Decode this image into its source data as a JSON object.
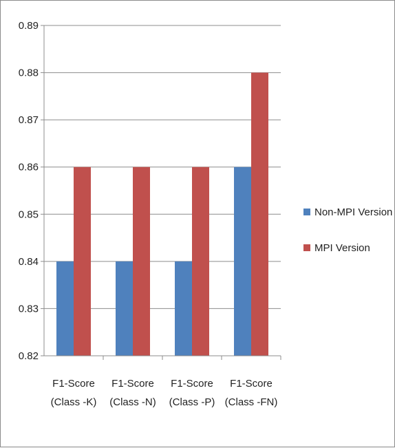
{
  "chart_data": {
    "type": "bar",
    "categories": [
      [
        "F1-Score",
        "(Class -K)"
      ],
      [
        "F1-Score",
        "(Class -N)"
      ],
      [
        "F1-Score",
        "(Class -P)"
      ],
      [
        "F1-Score",
        "(Class -FN)"
      ]
    ],
    "series": [
      {
        "name": "Non-MPI Version",
        "color": "#4F81BD",
        "values": [
          0.84,
          0.84,
          0.84,
          0.86
        ]
      },
      {
        "name": "MPI Version",
        "color": "#C0504D",
        "values": [
          0.86,
          0.86,
          0.86,
          0.88
        ]
      }
    ],
    "ylim": [
      0.82,
      0.89
    ],
    "yticks": [
      "0.82",
      "0.83",
      "0.84",
      "0.85",
      "0.86",
      "0.87",
      "0.88",
      "0.89"
    ],
    "grid": true,
    "legend_position": "right"
  }
}
